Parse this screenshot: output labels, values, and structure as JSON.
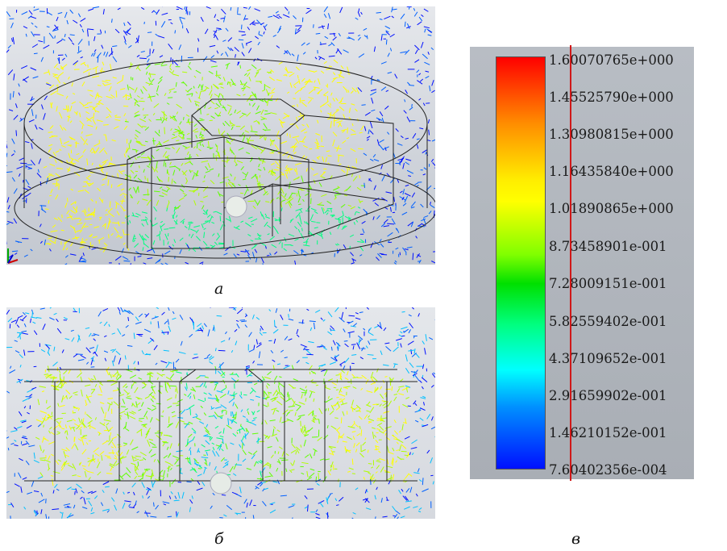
{
  "captions": {
    "a": "а",
    "b": "б",
    "c": "в"
  },
  "legend": {
    "labels": [
      "1.60070765e+000",
      "1.45525790e+000",
      "1.30980815e+000",
      "1.16435840e+000",
      "1.01890865e+000",
      "8.73458901e-001",
      "7.28009151e-001",
      "5.82559402e-001",
      "4.37109652e-001",
      "2.91659902e-001",
      "1.46210152e-001",
      "7.60402356e-004"
    ],
    "colors": [
      "#ff0000",
      "#ff8c00",
      "#ffff00",
      "#00e000",
      "#00ffff",
      "#0010ff"
    ]
  }
}
